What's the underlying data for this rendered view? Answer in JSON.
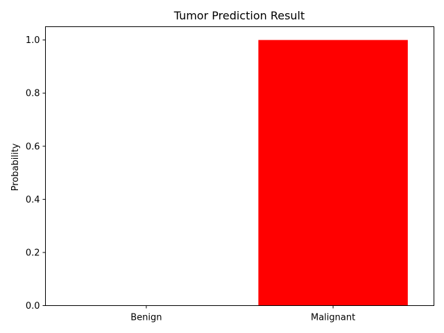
{
  "chart_data": {
    "type": "bar",
    "title": "Tumor Prediction Result",
    "xlabel": "",
    "ylabel": "Probability",
    "categories": [
      "Benign",
      "Malignant"
    ],
    "values": [
      0.0,
      1.0
    ],
    "colors": [
      "#008000",
      "#ff0000"
    ],
    "ylim": [
      0.0,
      1.05
    ],
    "yticks": [
      "0.0",
      "0.2",
      "0.4",
      "0.6",
      "0.8",
      "1.0"
    ],
    "grid": false,
    "legend": "none"
  }
}
